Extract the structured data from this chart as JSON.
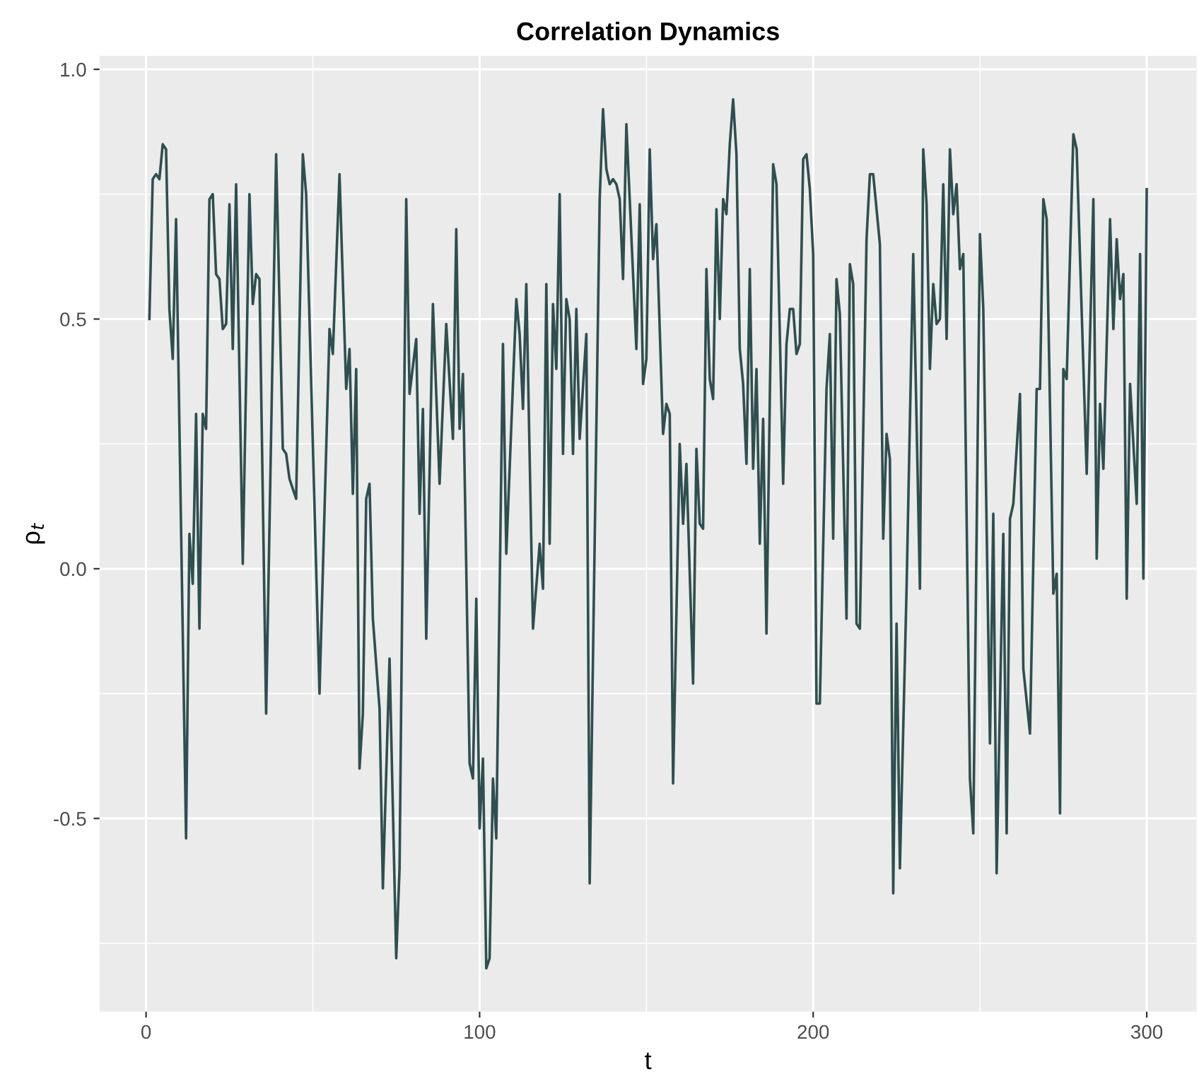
{
  "chart_data": {
    "type": "line",
    "title": "Correlation Dynamics",
    "xlabel": "t",
    "ylabel": "ρ$_{t}$",
    "xlim": [
      -13.95,
      314.95
    ],
    "ylim": [
      -0.887,
      1.027
    ],
    "xticks": [
      0,
      100,
      200,
      300
    ],
    "yticks": [
      {
        "value": -0.5,
        "label": "-0.5"
      },
      {
        "value": 0,
        "label": "0.0"
      },
      {
        "value": 0.5,
        "label": "0.5"
      },
      {
        "value": 1,
        "label": "1.0"
      }
    ],
    "grid": true,
    "legend": false,
    "marker": "none",
    "line_style": "solid",
    "series": [
      {
        "color": "#2f4f4f",
        "x": [
          1,
          2,
          3,
          4,
          5,
          6,
          7,
          8,
          9,
          12,
          13,
          14,
          15,
          16,
          17,
          18,
          19,
          20,
          21,
          22,
          23,
          24,
          25,
          26,
          27,
          29,
          31,
          32,
          33,
          34,
          36,
          39,
          41,
          42,
          43,
          45,
          47,
          48,
          52,
          55,
          56,
          58,
          60,
          61,
          62,
          63,
          64,
          65,
          66,
          67,
          68,
          70,
          71,
          73,
          75,
          76,
          78,
          79,
          81,
          82,
          83,
          84,
          86,
          88,
          90,
          92,
          93,
          94,
          95,
          97,
          98,
          99,
          100,
          101,
          102,
          103,
          104,
          105,
          107,
          108,
          111,
          112,
          113,
          114,
          116,
          118,
          119,
          120,
          121,
          122,
          123,
          124,
          125,
          126,
          127,
          128,
          129,
          130,
          132,
          133,
          136,
          137,
          138,
          139,
          140,
          141,
          142,
          143,
          144,
          147,
          148,
          149,
          150,
          151,
          152,
          153,
          155,
          156,
          157,
          158,
          160,
          161,
          162,
          164,
          165,
          166,
          167,
          168,
          169,
          170,
          171,
          172,
          173,
          174,
          175,
          176,
          177,
          178,
          179,
          180,
          181,
          182,
          183,
          184,
          185,
          186,
          188,
          189,
          191,
          192,
          193,
          194,
          195,
          196,
          197,
          198,
          199,
          200,
          201,
          202,
          204,
          205,
          206,
          207,
          208,
          210,
          211,
          212,
          213,
          214,
          216,
          217,
          218,
          220,
          221,
          222,
          223,
          224,
          225,
          226,
          228,
          230,
          232,
          233,
          234,
          235,
          236,
          237,
          238,
          239,
          240,
          241,
          242,
          243,
          244,
          245,
          247,
          248,
          250,
          251,
          253,
          254,
          255,
          257,
          258,
          259,
          260,
          262,
          263,
          265,
          267,
          268,
          269,
          270,
          272,
          273,
          274,
          275,
          276,
          278,
          279,
          282,
          284,
          285,
          286,
          287,
          289,
          290,
          291,
          292,
          293,
          294,
          295,
          297,
          298,
          299,
          300
        ],
        "values": [
          0.5,
          0.78,
          0.79,
          0.78,
          0.85,
          0.84,
          0.52,
          0.42,
          0.7,
          -0.54,
          0.07,
          -0.03,
          0.31,
          -0.12,
          0.31,
          0.28,
          0.74,
          0.75,
          0.59,
          0.58,
          0.48,
          0.49,
          0.73,
          0.44,
          0.77,
          0.01,
          0.75,
          0.53,
          0.59,
          0.58,
          -0.29,
          0.83,
          0.24,
          0.23,
          0.18,
          0.14,
          0.83,
          0.75,
          -0.25,
          0.48,
          0.43,
          0.79,
          0.36,
          0.44,
          0.15,
          0.4,
          -0.4,
          -0.29,
          0.14,
          0.17,
          -0.1,
          -0.28,
          -0.64,
          -0.18,
          -0.78,
          -0.6,
          0.74,
          0.35,
          0.46,
          0.11,
          0.32,
          -0.14,
          0.53,
          0.17,
          0.49,
          0.26,
          0.68,
          0.28,
          0.39,
          -0.39,
          -0.42,
          -0.06,
          -0.52,
          -0.38,
          -0.8,
          -0.78,
          -0.42,
          -0.54,
          0.45,
          0.03,
          0.54,
          0.47,
          0.32,
          0.57,
          -0.12,
          0.05,
          -0.04,
          0.57,
          0.05,
          0.53,
          0.4,
          0.75,
          0.23,
          0.54,
          0.5,
          0.23,
          0.52,
          0.26,
          0.47,
          -0.63,
          0.74,
          0.92,
          0.8,
          0.77,
          0.78,
          0.77,
          0.74,
          0.58,
          0.89,
          0.44,
          0.73,
          0.37,
          0.42,
          0.84,
          0.62,
          0.69,
          0.27,
          0.33,
          0.31,
          -0.43,
          0.25,
          0.09,
          0.21,
          -0.23,
          0.24,
          0.09,
          0.08,
          0.6,
          0.38,
          0.34,
          0.72,
          0.5,
          0.74,
          0.71,
          0.85,
          0.94,
          0.83,
          0.44,
          0.37,
          0.21,
          0.6,
          0.2,
          0.4,
          0.05,
          0.3,
          -0.13,
          0.81,
          0.77,
          0.17,
          0.45,
          0.52,
          0.52,
          0.43,
          0.45,
          0.82,
          0.83,
          0.76,
          0.63,
          -0.27,
          -0.27,
          0.36,
          0.47,
          0.06,
          0.58,
          0.51,
          -0.1,
          0.61,
          0.57,
          -0.11,
          -0.12,
          0.66,
          0.79,
          0.79,
          0.65,
          0.06,
          0.27,
          0.22,
          -0.65,
          -0.11,
          -0.6,
          -0.04,
          0.63,
          -0.04,
          0.84,
          0.73,
          0.4,
          0.57,
          0.49,
          0.5,
          0.77,
          0.46,
          0.84,
          0.71,
          0.77,
          0.6,
          0.63,
          -0.42,
          -0.53,
          0.67,
          0.52,
          -0.35,
          0.11,
          -0.61,
          0.07,
          -0.53,
          0.1,
          0.13,
          0.35,
          -0.2,
          -0.33,
          0.36,
          0.36,
          0.74,
          0.7,
          -0.05,
          -0.01,
          -0.49,
          0.4,
          0.38,
          0.87,
          0.84,
          0.19,
          0.74,
          0.02,
          0.33,
          0.2,
          0.7,
          0.48,
          0.66,
          0.54,
          0.59,
          -0.06,
          0.37,
          0.13,
          0.63,
          -0.02,
          0.76
        ]
      }
    ]
  }
}
